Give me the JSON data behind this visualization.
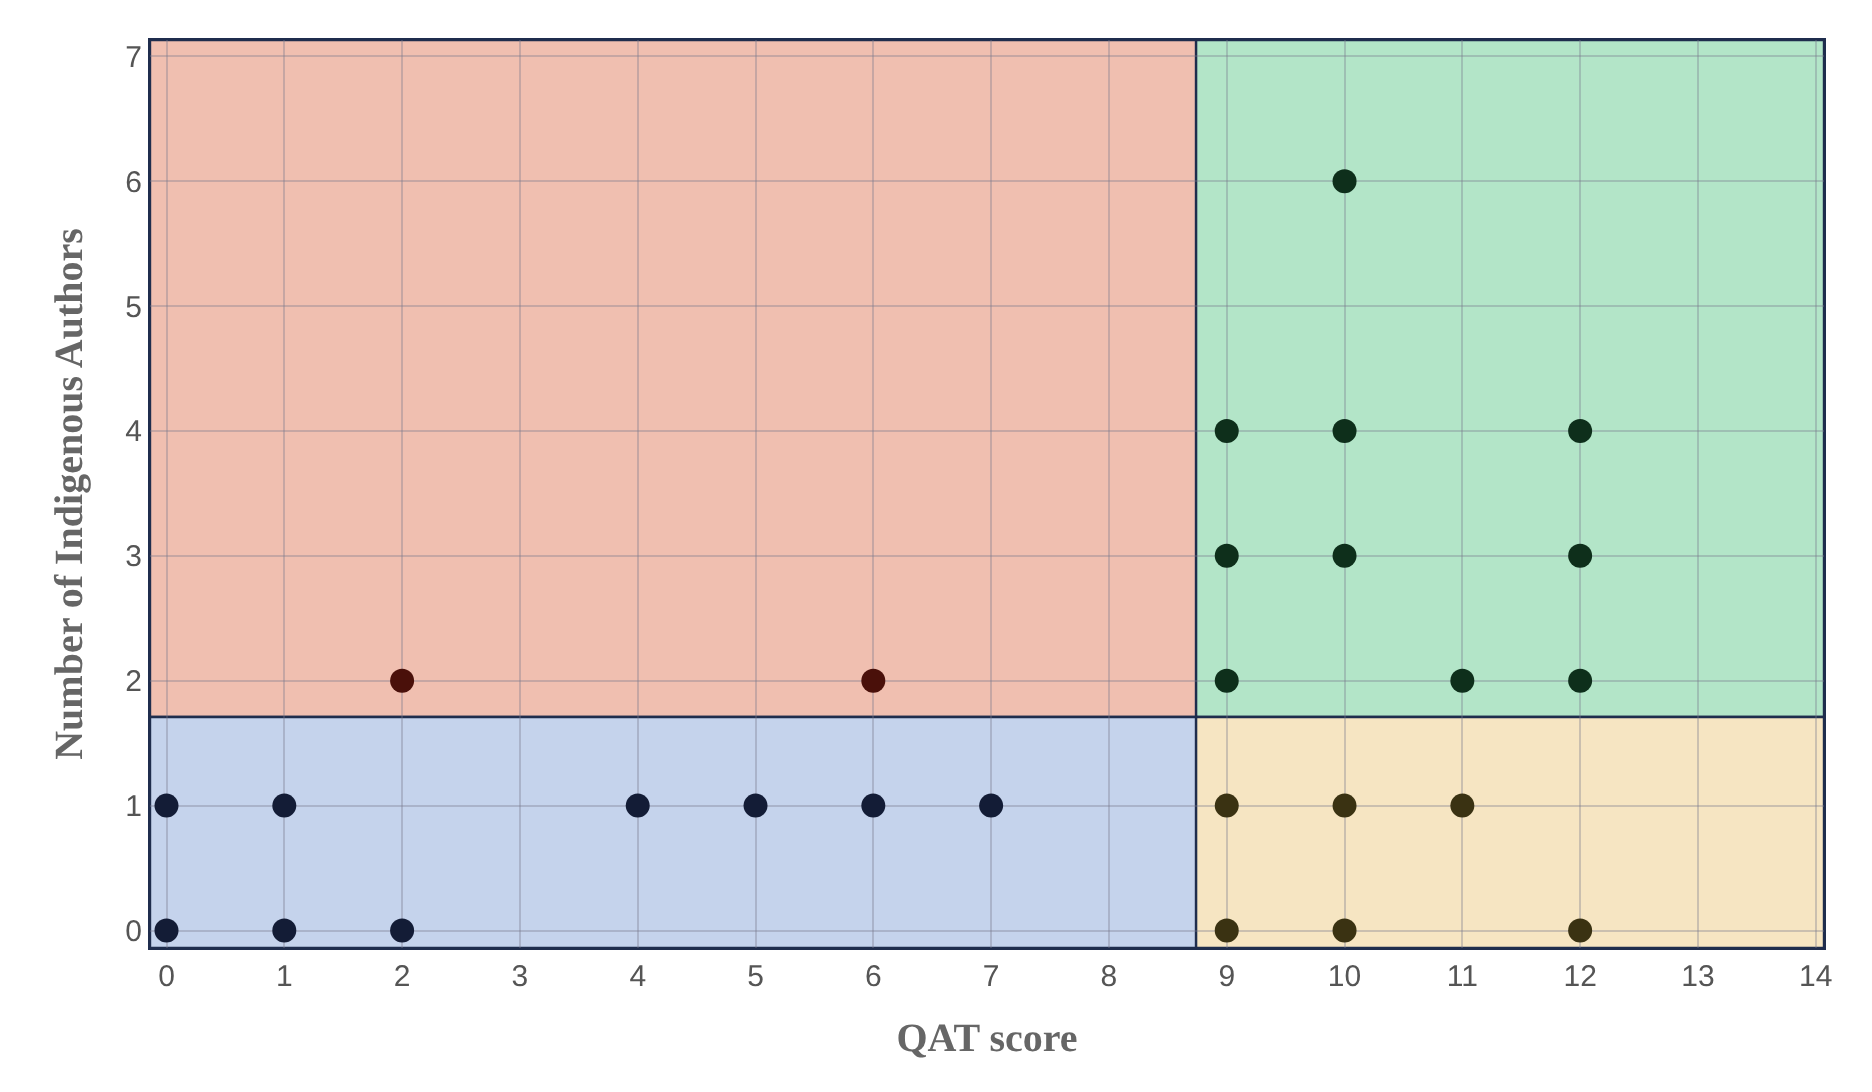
{
  "chart_data": {
    "type": "scatter",
    "xlabel": "QAT score",
    "ylabel": "Number of Indigenous Authors",
    "series": [
      {
        "color": "#131c36",
        "x": [
          0,
          0,
          1,
          1,
          2,
          4,
          5,
          6,
          7
        ],
        "values": [
          0,
          1,
          0,
          1,
          0,
          1,
          1,
          1,
          1
        ]
      },
      {
        "color": "#4a100a",
        "x": [
          2,
          6
        ],
        "values": [
          2,
          2
        ]
      },
      {
        "color": "#0e2f1b",
        "x": [
          9,
          9,
          9,
          10,
          10,
          10,
          11,
          12,
          12,
          12
        ],
        "values": [
          2,
          3,
          4,
          3,
          4,
          6,
          2,
          2,
          3,
          4
        ]
      },
      {
        "color": "#3a3212",
        "x": [
          9,
          9,
          10,
          10,
          11,
          12
        ],
        "values": [
          0,
          1,
          0,
          1,
          1,
          0
        ]
      }
    ],
    "bands": [
      {
        "axis": "x",
        "from": -0.14,
        "to": 8.74,
        "color": "#f0bfb0"
      },
      {
        "axis": "x",
        "from": 8.74,
        "to": 14.07,
        "color": "#b3e5c8"
      },
      {
        "axis": "y",
        "from": -0.14,
        "to": 1.71,
        "color": "#c5d3ec"
      },
      {
        "axis": "y",
        "from": -0.14,
        "to": 1.71,
        "color": "#f6e5c2"
      }
    ],
    "xlim": [
      -0.14,
      14.07
    ],
    "ylim": [
      -0.14,
      7.13
    ],
    "xticks": [
      0,
      1,
      2,
      3,
      4,
      5,
      6,
      7,
      8,
      9,
      10,
      11,
      12,
      13,
      14
    ],
    "yticks": [
      0,
      1,
      2,
      3,
      4,
      5,
      6,
      7
    ],
    "grid": true,
    "marker": "circle"
  }
}
